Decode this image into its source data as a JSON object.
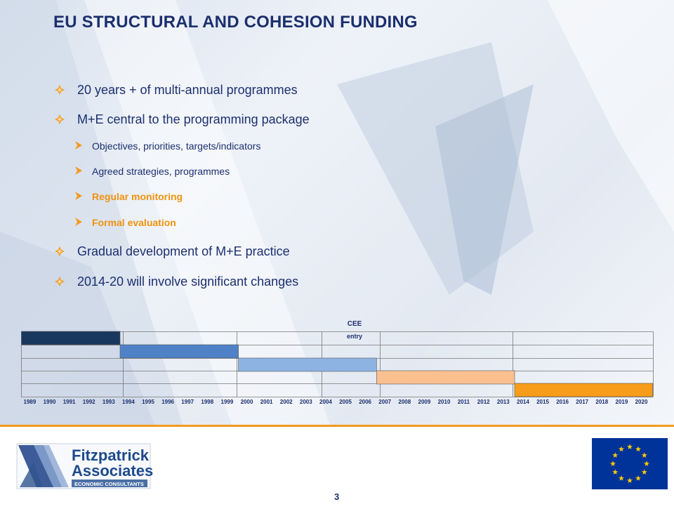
{
  "title": "EU STRUCTURAL AND COHESION FUNDING",
  "bullets": [
    {
      "level": 1,
      "text": "20 years + of multi-annual programmes",
      "highlight": false
    },
    {
      "level": 1,
      "text": "M+E central to the programming package",
      "highlight": false
    },
    {
      "level": 2,
      "text": "Objectives, priorities, targets/indicators",
      "highlight": false
    },
    {
      "level": 2,
      "text": "Agreed strategies, programmes",
      "highlight": false
    },
    {
      "level": 2,
      "text": "Regular monitoring",
      "highlight": true
    },
    {
      "level": 2,
      "text": "Formal evaluation",
      "highlight": true
    },
    {
      "level": 1,
      "text": "Gradual development of M+E practice",
      "highlight": false
    },
    {
      "level": 1,
      "text": "2014-20 will involve significant changes",
      "highlight": false
    }
  ],
  "timeline": {
    "annotation_line1": "CEE",
    "annotation_line2": "entry",
    "years": [
      "1989",
      "1990",
      "1991",
      "1992",
      "1993",
      "1994",
      "1995",
      "1996",
      "1997",
      "1998",
      "1999",
      "2000",
      "2001",
      "2002",
      "2003",
      "2004",
      "2005",
      "2006",
      "2007",
      "2008",
      "2009",
      "2010",
      "2011",
      "2012",
      "2013",
      "2014",
      "2015",
      "2016",
      "2017",
      "2018",
      "2019",
      "2020"
    ],
    "periods": [
      {
        "start": 1989,
        "end": 1993,
        "color": "#17375e"
      },
      {
        "start": 1994,
        "end": 1999,
        "color": "#4f81c7"
      },
      {
        "start": 2000,
        "end": 2006,
        "color": "#8db3e2"
      },
      {
        "start": 2007,
        "end": 2013,
        "color": "#fac090"
      },
      {
        "start": 2014,
        "end": 2020,
        "color": "#f79d1b"
      }
    ]
  },
  "colors": {
    "title": "#1b2f6e",
    "highlight": "#f0930e",
    "bullet_marker": "#f39a1e",
    "footer_rule": "#f39a1e"
  },
  "logo": {
    "line1": "Fitzpatrick",
    "line2": "Associates",
    "tagline": "ECONOMIC CONSULTANTS"
  },
  "page_number": "3"
}
